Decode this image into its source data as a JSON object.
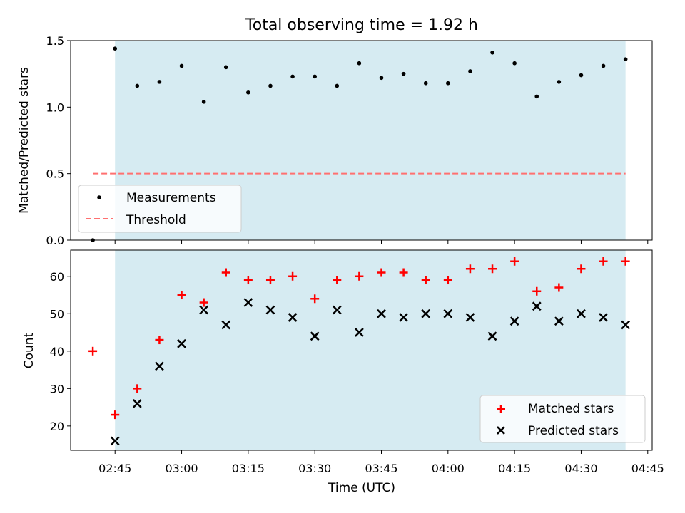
{
  "chart_data": [
    {
      "type": "scatter",
      "title": "Total observing time = 1.92 h",
      "ylabel": "Matched/Predicted stars",
      "xlabel": "",
      "xlim": [
        "02:35",
        "04:46"
      ],
      "ylim": [
        0,
        1.5
      ],
      "yticks": [
        "0.0",
        "0.5",
        "1.0",
        "1.5"
      ],
      "shaded_span": [
        "02:45",
        "04:40"
      ],
      "shaded_color": "#add8e6",
      "series": [
        {
          "name": "Measurements",
          "marker": "dot",
          "color": "#000000",
          "x": [
            "02:40",
            "02:45",
            "02:50",
            "02:55",
            "03:00",
            "03:05",
            "03:10",
            "03:15",
            "03:20",
            "03:25",
            "03:30",
            "03:35",
            "03:40",
            "03:45",
            "03:50",
            "03:55",
            "04:00",
            "04:05",
            "04:10",
            "04:15",
            "04:20",
            "04:25",
            "04:30",
            "04:35",
            "04:40"
          ],
          "y": [
            0.0,
            1.44,
            1.16,
            1.19,
            1.31,
            1.04,
            1.3,
            1.11,
            1.16,
            1.23,
            1.23,
            1.16,
            1.33,
            1.22,
            1.25,
            1.18,
            1.18,
            1.27,
            1.41,
            1.33,
            1.08,
            1.19,
            1.24,
            1.31,
            1.36
          ]
        },
        {
          "name": "Threshold",
          "marker": "dashed-line",
          "color": "#ff7070",
          "x": [
            "02:40",
            "04:40"
          ],
          "y": [
            0.5,
            0.5
          ]
        }
      ],
      "legend_position": "lower-left"
    },
    {
      "type": "scatter",
      "title": "",
      "xlabel": "Time (UTC)",
      "ylabel": "Count",
      "xlim": [
        "02:35",
        "04:46"
      ],
      "ylim": [
        13.5,
        67
      ],
      "xticks": [
        "02:45",
        "03:00",
        "03:15",
        "03:30",
        "03:45",
        "04:00",
        "04:15",
        "04:30",
        "04:45"
      ],
      "yticks": [
        "20",
        "30",
        "40",
        "50",
        "60"
      ],
      "shaded_span": [
        "02:45",
        "04:40"
      ],
      "shaded_color": "#add8e6",
      "series": [
        {
          "name": "Matched stars",
          "marker": "plus",
          "color": "#ff0000",
          "x": [
            "02:40",
            "02:45",
            "02:50",
            "02:55",
            "03:00",
            "03:05",
            "03:10",
            "03:15",
            "03:20",
            "03:25",
            "03:30",
            "03:35",
            "03:40",
            "03:45",
            "03:50",
            "03:55",
            "04:00",
            "04:05",
            "04:10",
            "04:15",
            "04:20",
            "04:25",
            "04:30",
            "04:35",
            "04:40"
          ],
          "y": [
            40,
            23,
            30,
            43,
            55,
            53,
            61,
            59,
            59,
            60,
            54,
            59,
            60,
            61,
            61,
            59,
            59,
            62,
            62,
            64,
            56,
            57,
            62,
            64,
            64
          ]
        },
        {
          "name": "Predicted stars",
          "marker": "x",
          "color": "#000000",
          "x": [
            "02:45",
            "02:50",
            "02:55",
            "03:00",
            "03:05",
            "03:10",
            "03:15",
            "03:20",
            "03:25",
            "03:30",
            "03:35",
            "03:40",
            "03:45",
            "03:50",
            "03:55",
            "04:00",
            "04:05",
            "04:10",
            "04:15",
            "04:20",
            "04:25",
            "04:30",
            "04:35",
            "04:40"
          ],
          "y": [
            16,
            26,
            36,
            42,
            51,
            47,
            53,
            51,
            49,
            44,
            51,
            45,
            50,
            49,
            50,
            50,
            49,
            44,
            48,
            52,
            48,
            50,
            49,
            47
          ]
        }
      ],
      "legend_position": "lower-right"
    }
  ]
}
